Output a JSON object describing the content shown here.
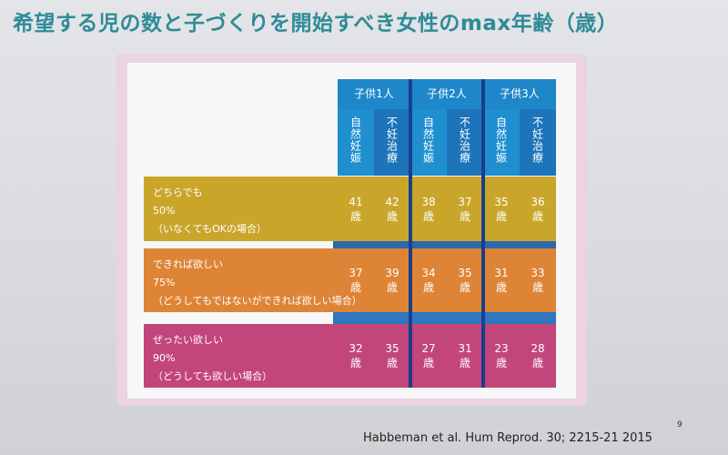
{
  "title": "希望する児の数と子づくりを開始すべき女性のmax年齢（歳）",
  "columns": {
    "groups": [
      {
        "label": "子供1人",
        "sub": [
          "自然妊娠",
          "不妊治療"
        ]
      },
      {
        "label": "子供2人",
        "sub": [
          "自然妊娠",
          "不妊治療"
        ]
      },
      {
        "label": "子供3人",
        "sub": [
          "自然妊娠",
          "不妊治療"
        ]
      }
    ]
  },
  "rows": [
    {
      "line1": "どちらでも",
      "line2": "50%",
      "line3": "（いなくてもOKの場合）",
      "values": [
        "41",
        "42",
        "38",
        "37",
        "35",
        "36"
      ],
      "unit": "歳"
    },
    {
      "line1": "できれば欲しい",
      "line2": "75%",
      "line3": "（どうしてもではないができれば欲しい場合）",
      "values": [
        "37",
        "39",
        "34",
        "35",
        "31",
        "33"
      ],
      "unit": "歳"
    },
    {
      "line1": "ぜったい欲しい",
      "line2": "90%",
      "line3": "（どうしても欲しい場合）",
      "values": [
        "32",
        "35",
        "27",
        "31",
        "23",
        "28"
      ],
      "unit": "歳"
    }
  ],
  "colors": {
    "title": "#2f8b97",
    "header_blue": "#1e87c9",
    "row1": "#c9a62a",
    "row2": "#de8437",
    "row3": "#c2467a",
    "frame": "#ead3e3"
  },
  "citation": "Habbeman et al. Hum Reprod. 30; 2215-21 2015",
  "page_number": "9"
}
